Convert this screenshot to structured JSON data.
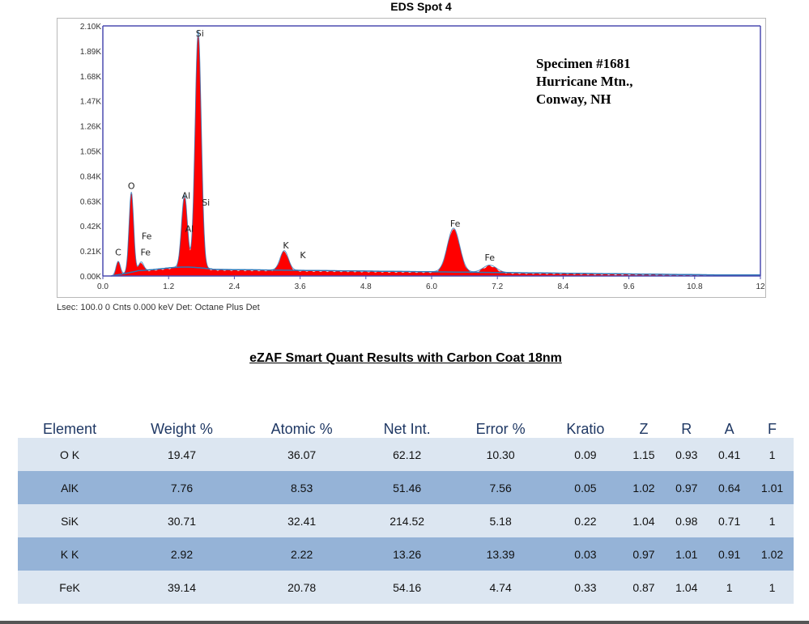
{
  "chart_data": {
    "type": "area",
    "title": "EDS Spot 4",
    "xlim": [
      0,
      12
    ],
    "ylim": [
      0,
      2100
    ],
    "x_ticks": [
      "0.0",
      "1.2",
      "2.4",
      "3.6",
      "4.8",
      "6.0",
      "7.2",
      "8.4",
      "9.6",
      "10.8",
      "12"
    ],
    "y_ticks": [
      "0.00K",
      "0.21K",
      "0.42K",
      "0.63K",
      "0.84K",
      "1.05K",
      "1.26K",
      "1.47K",
      "1.68K",
      "1.89K",
      "2.10K"
    ],
    "x_unit": "keV",
    "peaks": [
      {
        "element": "C",
        "energy": 0.28,
        "counts": 110
      },
      {
        "element": "O",
        "energy": 0.52,
        "counts": 660
      },
      {
        "element": "Fe",
        "energy": 0.7,
        "counts": 70
      },
      {
        "element": "Al",
        "energy": 1.49,
        "counts": 590
      },
      {
        "element": "Si",
        "energy": 1.74,
        "counts": 1950
      },
      {
        "element": "K",
        "energy": 3.31,
        "counts": 160
      },
      {
        "element": "Fe",
        "energy": 6.4,
        "counts": 360
      },
      {
        "element": "Fe",
        "energy": 7.06,
        "counts": 60
      }
    ],
    "peak_labels": [
      {
        "text": "C",
        "energy": 0.28,
        "counts": 175
      },
      {
        "text": "O",
        "energy": 0.52,
        "counts": 730
      },
      {
        "text": "Fe",
        "energy": 0.8,
        "counts": 310
      },
      {
        "text": "Fe",
        "energy": 0.78,
        "counts": 175
      },
      {
        "text": "Al",
        "energy": 1.52,
        "counts": 650
      },
      {
        "text": "Al",
        "energy": 1.58,
        "counts": 370
      },
      {
        "text": "Si",
        "energy": 1.77,
        "counts": 2010
      },
      {
        "text": "Si",
        "energy": 1.88,
        "counts": 590
      },
      {
        "text": "K",
        "energy": 3.34,
        "counts": 230
      },
      {
        "text": "K",
        "energy": 3.65,
        "counts": 150
      },
      {
        "text": "Fe",
        "energy": 6.43,
        "counts": 415
      },
      {
        "text": "Fe",
        "energy": 7.06,
        "counts": 130
      }
    ],
    "colors": {
      "spectrum": "#ff0000",
      "fit": "#2e75b6",
      "background": "#1f1f8f",
      "axis": "#4b4bb0"
    }
  },
  "specimen": [
    "Specimen #1681",
    "Hurricane Mtn.,",
    "Conway, NH"
  ],
  "footer": "Lsec: 100.0 0 Cnts  0.000 keV Det: Octane Plus Det",
  "subtitle": "eZAF Smart Quant Results with Carbon Coat 18nm",
  "table": {
    "headers": [
      "Element",
      "Weight %",
      "Atomic %",
      "Net Int.",
      "Error %",
      "Kratio",
      "Z",
      "R",
      "A",
      "F"
    ],
    "rows": [
      [
        "O K",
        "19.47",
        "36.07",
        "62.12",
        "10.30",
        "0.09",
        "1.15",
        "0.93",
        "0.41",
        "1"
      ],
      [
        "AlK",
        "7.76",
        "8.53",
        "51.46",
        "7.56",
        "0.05",
        "1.02",
        "0.97",
        "0.64",
        "1.01"
      ],
      [
        "SiK",
        "30.71",
        "32.41",
        "214.52",
        "5.18",
        "0.22",
        "1.04",
        "0.98",
        "0.71",
        "1"
      ],
      [
        "K K",
        "2.92",
        "2.22",
        "13.26",
        "13.39",
        "0.03",
        "0.97",
        "1.01",
        "0.91",
        "1.02"
      ],
      [
        "FeK",
        "39.14",
        "20.78",
        "54.16",
        "4.74",
        "0.33",
        "0.87",
        "1.04",
        "1",
        "1"
      ]
    ],
    "colors": {
      "light": "#dce6f1",
      "dark": "#95b3d7",
      "header": "#1f3864"
    }
  }
}
